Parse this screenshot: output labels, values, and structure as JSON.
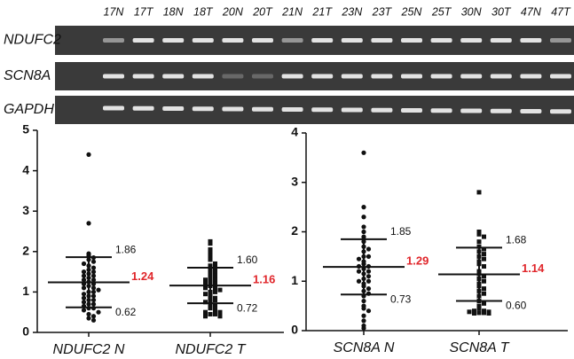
{
  "gel": {
    "lanes": [
      "17N",
      "17T",
      "18N",
      "18T",
      "20N",
      "20T",
      "21N",
      "21T",
      "23N",
      "23T",
      "25N",
      "25T",
      "30N",
      "30T",
      "47N",
      "47T"
    ],
    "rows": [
      "NDUFC2",
      "SCN8A",
      "GAPDH"
    ]
  },
  "chart_data": [
    {
      "type": "dot",
      "ylim": [
        0,
        5
      ],
      "yticks": [
        0,
        1,
        2,
        3,
        4,
        5
      ],
      "mean_color": "#e0262b",
      "series": [
        {
          "name": "NDUFC2 N",
          "marker": "circle",
          "color": "#111111",
          "values": [
            4.4,
            2.7,
            1.95,
            1.9,
            1.85,
            1.8,
            1.75,
            1.7,
            1.65,
            1.6,
            1.55,
            1.5,
            1.5,
            1.45,
            1.4,
            1.4,
            1.35,
            1.3,
            1.3,
            1.25,
            1.2,
            1.2,
            1.15,
            1.1,
            1.1,
            1.05,
            1.0,
            1.0,
            0.95,
            0.9,
            0.9,
            0.85,
            0.8,
            0.8,
            0.75,
            0.7,
            0.7,
            0.65,
            0.6,
            0.6,
            0.55,
            0.5,
            0.45,
            0.4,
            0.35,
            0.3
          ],
          "stats": {
            "values": [
              1.86,
              1.24,
              0.62
            ],
            "value_labels": [
              "1.86",
              "1.24",
              "0.62"
            ]
          }
        },
        {
          "name": "NDUFC2 T",
          "marker": "square",
          "color": "#111111",
          "values": [
            2.25,
            2.2,
            2.05,
            2.0,
            1.9,
            1.8,
            1.7,
            1.65,
            1.6,
            1.55,
            1.5,
            1.45,
            1.4,
            1.35,
            1.3,
            1.3,
            1.25,
            1.2,
            1.2,
            1.15,
            1.1,
            1.1,
            1.05,
            1.0,
            1.0,
            0.95,
            0.9,
            0.85,
            0.8,
            0.8,
            0.75,
            0.7,
            0.65,
            0.6,
            0.55,
            0.5,
            0.5,
            0.45,
            0.45,
            0.4,
            0.4
          ],
          "stats": {
            "values": [
              1.6,
              1.16,
              0.72
            ],
            "value_labels": [
              "1.60",
              "1.16",
              "0.72"
            ]
          }
        }
      ]
    },
    {
      "type": "dot",
      "ylim": [
        0,
        4
      ],
      "yticks": [
        0,
        1,
        2,
        3,
        4
      ],
      "mean_color": "#e0262b",
      "series": [
        {
          "name": "SCN8A N",
          "marker": "circle",
          "color": "#111111",
          "values": [
            3.6,
            2.5,
            2.3,
            2.1,
            2.0,
            1.9,
            1.85,
            1.8,
            1.7,
            1.65,
            1.6,
            1.5,
            1.5,
            1.45,
            1.4,
            1.35,
            1.3,
            1.3,
            1.25,
            1.2,
            1.2,
            1.15,
            1.1,
            1.05,
            1.0,
            1.0,
            0.95,
            0.9,
            0.85,
            0.8,
            0.75,
            0.7,
            0.6,
            0.5,
            0.45,
            0.4,
            0.3,
            0.2,
            0.1,
            0.05
          ],
          "stats": {
            "values": [
              1.85,
              1.29,
              0.73
            ],
            "value_labels": [
              "1.85",
              "1.29",
              "0.73"
            ]
          }
        },
        {
          "name": "SCN8A T",
          "marker": "square",
          "color": "#111111",
          "values": [
            2.8,
            2.0,
            1.95,
            1.9,
            1.8,
            1.7,
            1.65,
            1.6,
            1.55,
            1.5,
            1.45,
            1.4,
            1.35,
            1.3,
            1.2,
            1.15,
            1.1,
            1.05,
            1.0,
            0.95,
            0.9,
            0.85,
            0.8,
            0.75,
            0.7,
            0.6,
            0.55,
            0.5,
            0.45,
            0.4,
            0.4,
            0.38,
            0.38,
            0.36,
            0.36,
            0.35,
            0.35
          ],
          "stats": {
            "values": [
              1.68,
              1.14,
              0.6
            ],
            "value_labels": [
              "1.68",
              "1.14",
              "0.60"
            ]
          }
        }
      ]
    }
  ]
}
